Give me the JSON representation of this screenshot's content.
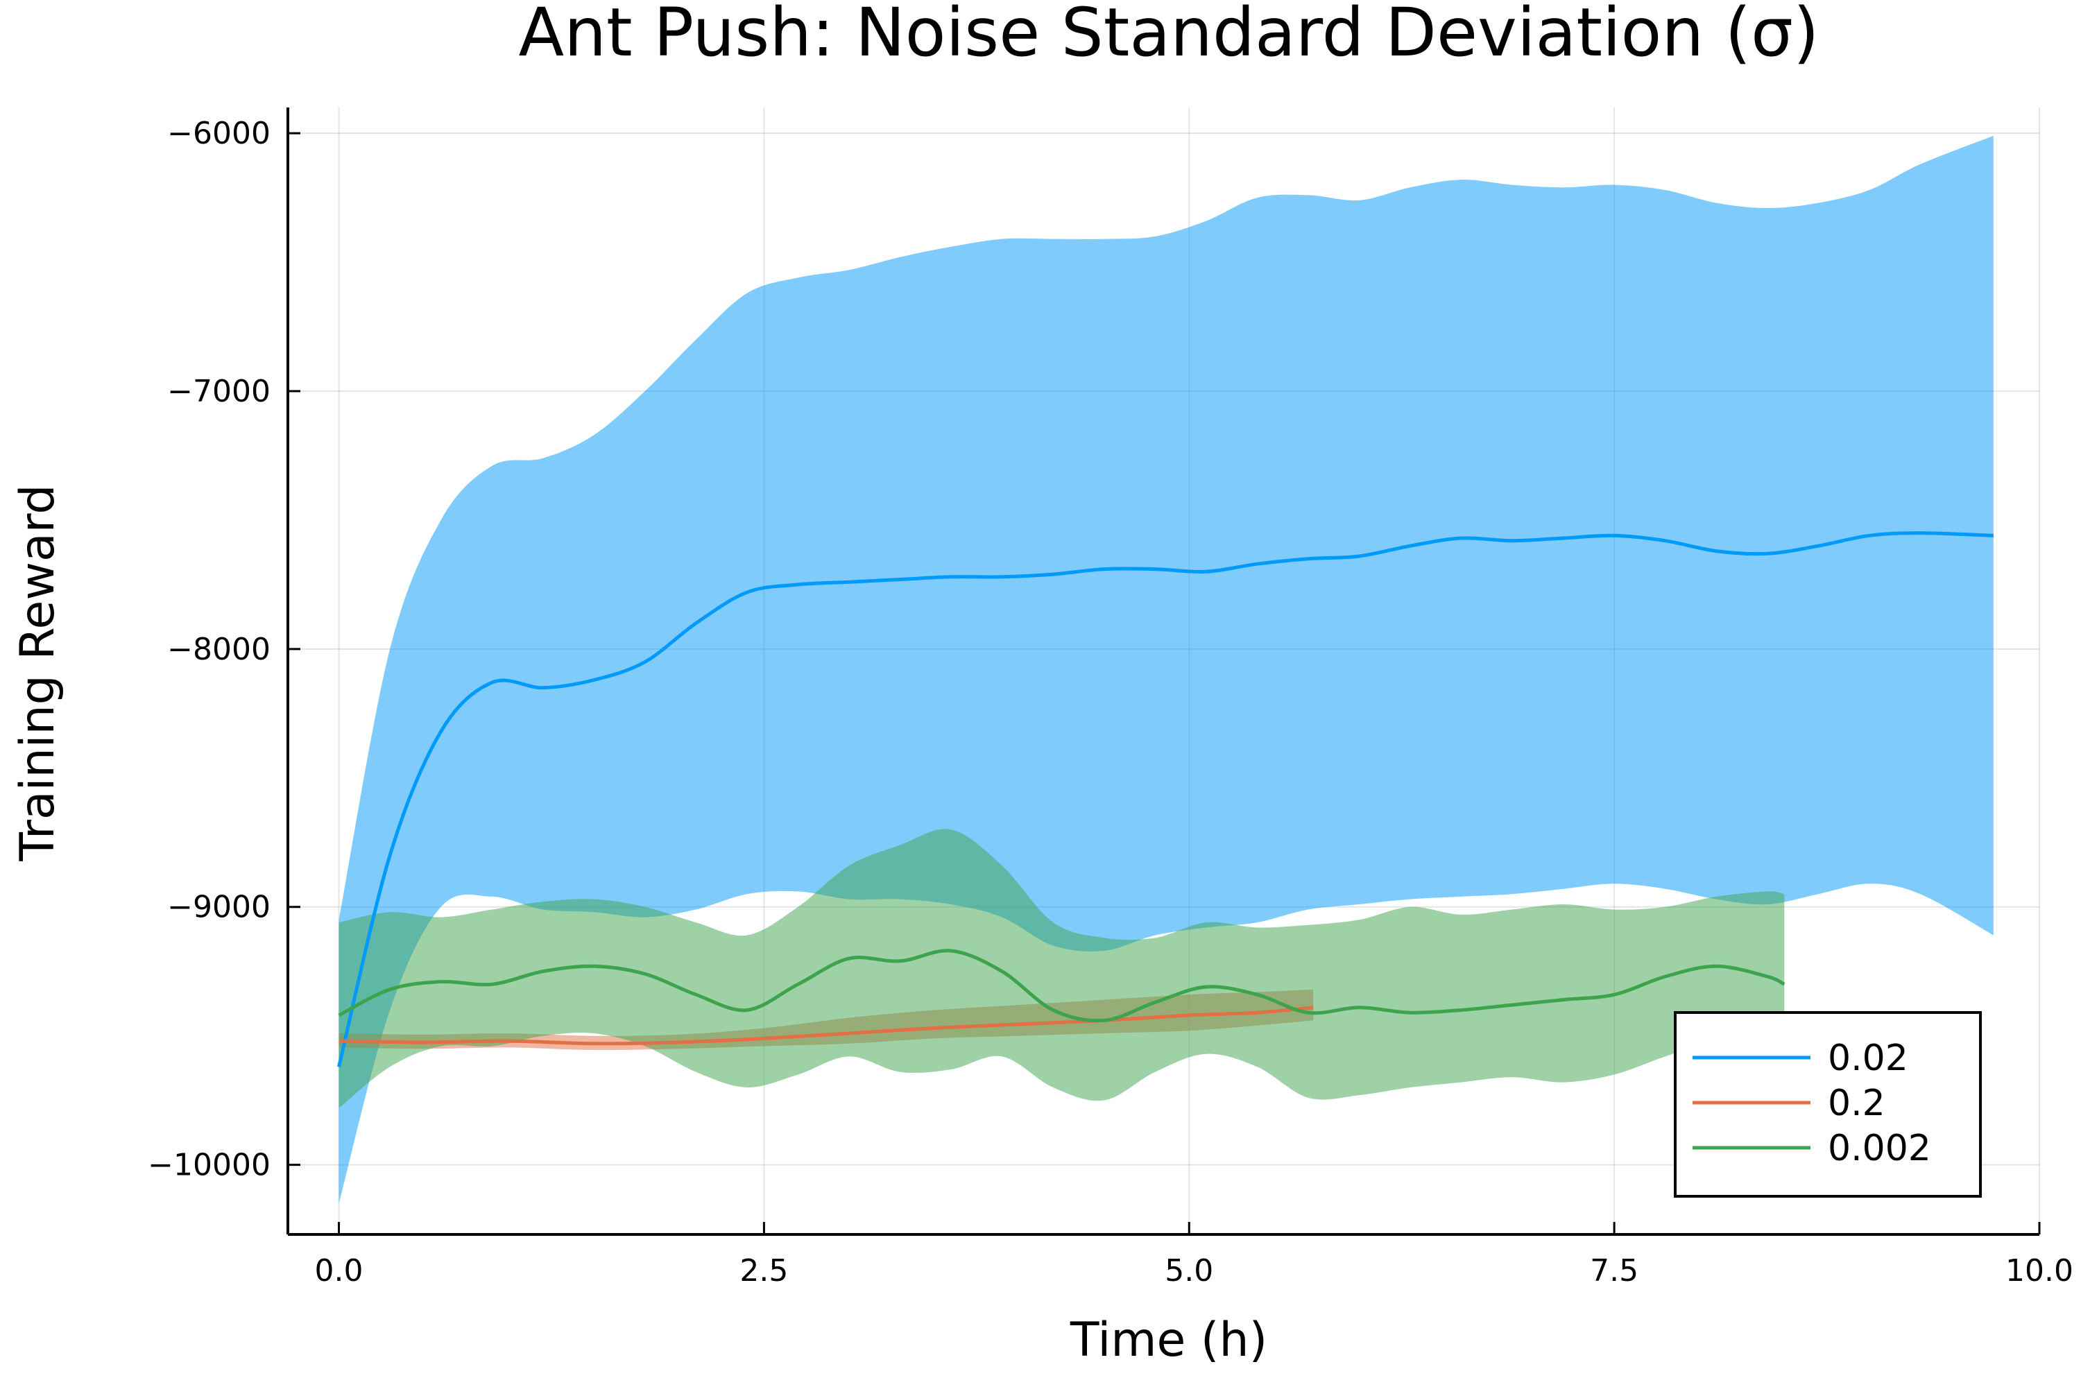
{
  "chart_data": {
    "type": "line",
    "title": "Ant Push: Noise Standard Deviation (σ)",
    "xlabel": "Time (h)",
    "ylabel": "Training Reward",
    "xlim": [
      -0.3,
      10
    ],
    "ylim": [
      -10270,
      -5900
    ],
    "xticks": [
      0,
      2.5,
      5,
      7.5,
      10
    ],
    "xtick_labels": [
      "0.0",
      "2.5",
      "5.0",
      "7.5",
      "10.0"
    ],
    "yticks": [
      -10000,
      -9000,
      -8000,
      -7000,
      -6000
    ],
    "ytick_labels": [
      "−10000",
      "−9000",
      "−8000",
      "−7000",
      "−6000"
    ],
    "grid": true,
    "legend_position": "bottom-right",
    "series": [
      {
        "name": "0.02",
        "color": "#009AFA",
        "x": [
          0,
          0.3,
          0.6,
          0.9,
          1.2,
          1.5,
          1.8,
          2.1,
          2.4,
          2.7,
          3.0,
          3.3,
          3.6,
          3.9,
          4.2,
          4.5,
          4.8,
          5.1,
          5.4,
          5.7,
          6.0,
          6.3,
          6.6,
          6.9,
          7.2,
          7.5,
          7.8,
          8.1,
          8.4,
          8.7,
          9.0,
          9.3,
          9.73
        ],
        "y": [
          -9620,
          -8800,
          -8320,
          -8130,
          -8150,
          -8120,
          -8050,
          -7900,
          -7780,
          -7750,
          -7740,
          -7730,
          -7720,
          -7720,
          -7710,
          -7690,
          -7690,
          -7700,
          -7670,
          -7650,
          -7640,
          -7600,
          -7570,
          -7580,
          -7570,
          -7560,
          -7580,
          -7620,
          -7630,
          -7600,
          -7560,
          -7550,
          -7560
        ],
        "upper": [
          -9050,
          -8000,
          -7500,
          -7290,
          -7260,
          -7170,
          -7000,
          -6800,
          -6620,
          -6560,
          -6530,
          -6480,
          -6440,
          -6410,
          -6410,
          -6410,
          -6400,
          -6340,
          -6250,
          -6240,
          -6260,
          -6210,
          -6180,
          -6200,
          -6210,
          -6200,
          -6220,
          -6270,
          -6290,
          -6270,
          -6220,
          -6120,
          -6010
        ],
        "lower": [
          -10150,
          -9400,
          -9000,
          -8960,
          -9010,
          -9020,
          -9040,
          -9010,
          -8950,
          -8940,
          -8970,
          -8970,
          -8990,
          -9040,
          -9150,
          -9170,
          -9110,
          -9080,
          -9060,
          -9010,
          -8990,
          -8970,
          -8960,
          -8950,
          -8930,
          -8910,
          -8930,
          -8970,
          -8990,
          -8950,
          -8910,
          -8950,
          -9110
        ]
      },
      {
        "name": "0.2",
        "color": "#E26F46",
        "x": [
          0,
          0.5,
          1.0,
          1.5,
          2.0,
          2.5,
          3.0,
          3.5,
          4.0,
          4.5,
          5.0,
          5.4,
          5.73
        ],
        "y": [
          -9520,
          -9525,
          -9520,
          -9530,
          -9525,
          -9510,
          -9490,
          -9470,
          -9455,
          -9440,
          -9420,
          -9410,
          -9390
        ],
        "upper": [
          -9490,
          -9495,
          -9490,
          -9500,
          -9495,
          -9470,
          -9430,
          -9400,
          -9380,
          -9360,
          -9340,
          -9330,
          -9320
        ],
        "lower": [
          -9545,
          -9550,
          -9545,
          -9555,
          -9550,
          -9540,
          -9530,
          -9510,
          -9500,
          -9490,
          -9480,
          -9460,
          -9440
        ]
      },
      {
        "name": "0.002",
        "color": "#3DA44D",
        "x": [
          0,
          0.3,
          0.6,
          0.9,
          1.2,
          1.5,
          1.8,
          2.1,
          2.4,
          2.7,
          3.0,
          3.3,
          3.6,
          3.9,
          4.2,
          4.5,
          4.8,
          5.1,
          5.4,
          5.7,
          6.0,
          6.3,
          6.6,
          6.9,
          7.2,
          7.5,
          7.8,
          8.1,
          8.4,
          8.5
        ],
        "y": [
          -9420,
          -9320,
          -9290,
          -9300,
          -9250,
          -9230,
          -9260,
          -9340,
          -9400,
          -9300,
          -9200,
          -9210,
          -9170,
          -9250,
          -9400,
          -9440,
          -9370,
          -9310,
          -9340,
          -9410,
          -9390,
          -9410,
          -9400,
          -9380,
          -9360,
          -9340,
          -9270,
          -9230,
          -9270,
          -9300
        ],
        "upper": [
          -9060,
          -9020,
          -9040,
          -9010,
          -8980,
          -8970,
          -9000,
          -9060,
          -9110,
          -9000,
          -8840,
          -8760,
          -8700,
          -8840,
          -9060,
          -9120,
          -9120,
          -9060,
          -9080,
          -9070,
          -9050,
          -9000,
          -9030,
          -9010,
          -8990,
          -9010,
          -9000,
          -8960,
          -8940,
          -8950
        ],
        "lower": [
          -9780,
          -9620,
          -9540,
          -9540,
          -9500,
          -9490,
          -9540,
          -9640,
          -9700,
          -9650,
          -9580,
          -9640,
          -9630,
          -9580,
          -9700,
          -9750,
          -9640,
          -9570,
          -9620,
          -9740,
          -9730,
          -9700,
          -9680,
          -9660,
          -9680,
          -9650,
          -9580,
          -9520,
          -9550,
          -9560
        ]
      }
    ]
  }
}
